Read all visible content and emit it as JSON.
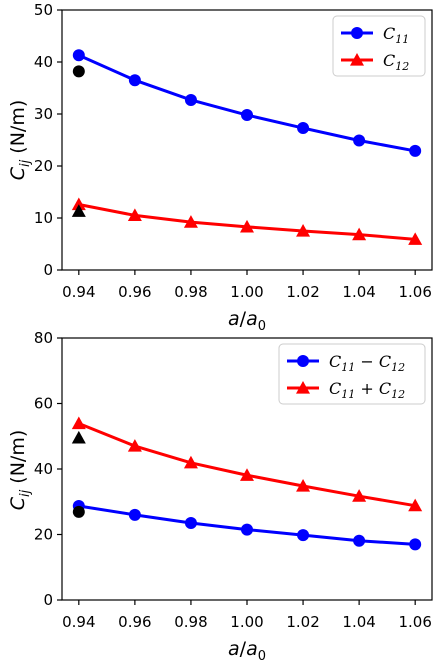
{
  "chart_data": [
    {
      "type": "line",
      "xlabel": "a/a0",
      "ylabel": "Cij (N/m)",
      "x": [
        0.94,
        0.96,
        0.98,
        1.0,
        1.02,
        1.04,
        1.06
      ],
      "x_tick_labels": [
        "0.94",
        "0.96",
        "0.98",
        "1.00",
        "1.02",
        "1.04",
        "1.06"
      ],
      "ylim": [
        0,
        50
      ],
      "y_ticks": [
        0,
        10,
        20,
        30,
        40,
        50
      ],
      "grid": false,
      "legend_position": "top-right",
      "series": [
        {
          "name": "C11",
          "color": "#0000ff",
          "marker": "circle",
          "values": [
            41.3,
            36.5,
            32.7,
            29.8,
            27.3,
            24.9,
            22.9
          ]
        },
        {
          "name": "C12",
          "color": "#ff0000",
          "marker": "triangle",
          "values": [
            12.6,
            10.5,
            9.2,
            8.3,
            7.5,
            6.8,
            5.9
          ]
        }
      ],
      "reference_points": [
        {
          "x": 0.94,
          "y": 38.2,
          "marker": "circle",
          "color": "#000000"
        },
        {
          "x": 0.94,
          "y": 11.3,
          "marker": "triangle",
          "color": "#000000"
        }
      ]
    },
    {
      "type": "line",
      "xlabel": "a/a0",
      "ylabel": "Cij (N/m)",
      "x": [
        0.94,
        0.96,
        0.98,
        1.0,
        1.02,
        1.04,
        1.06
      ],
      "x_tick_labels": [
        "0.94",
        "0.96",
        "0.98",
        "1.00",
        "1.02",
        "1.04",
        "1.06"
      ],
      "ylim": [
        0,
        80
      ],
      "y_ticks": [
        0,
        20,
        40,
        60,
        80
      ],
      "grid": false,
      "legend_position": "top-right",
      "series": [
        {
          "name": "C11 − C12",
          "color": "#0000ff",
          "marker": "circle",
          "values": [
            28.7,
            26.0,
            23.5,
            21.5,
            19.8,
            18.1,
            17.0
          ]
        },
        {
          "name": "C11 + C12",
          "color": "#ff0000",
          "marker": "triangle",
          "values": [
            53.9,
            47.0,
            41.9,
            38.1,
            34.8,
            31.7,
            28.8
          ]
        }
      ],
      "reference_points": [
        {
          "x": 0.94,
          "y": 26.9,
          "marker": "circle",
          "color": "#000000"
        },
        {
          "x": 0.94,
          "y": 49.5,
          "marker": "triangle",
          "color": "#000000"
        }
      ]
    }
  ]
}
